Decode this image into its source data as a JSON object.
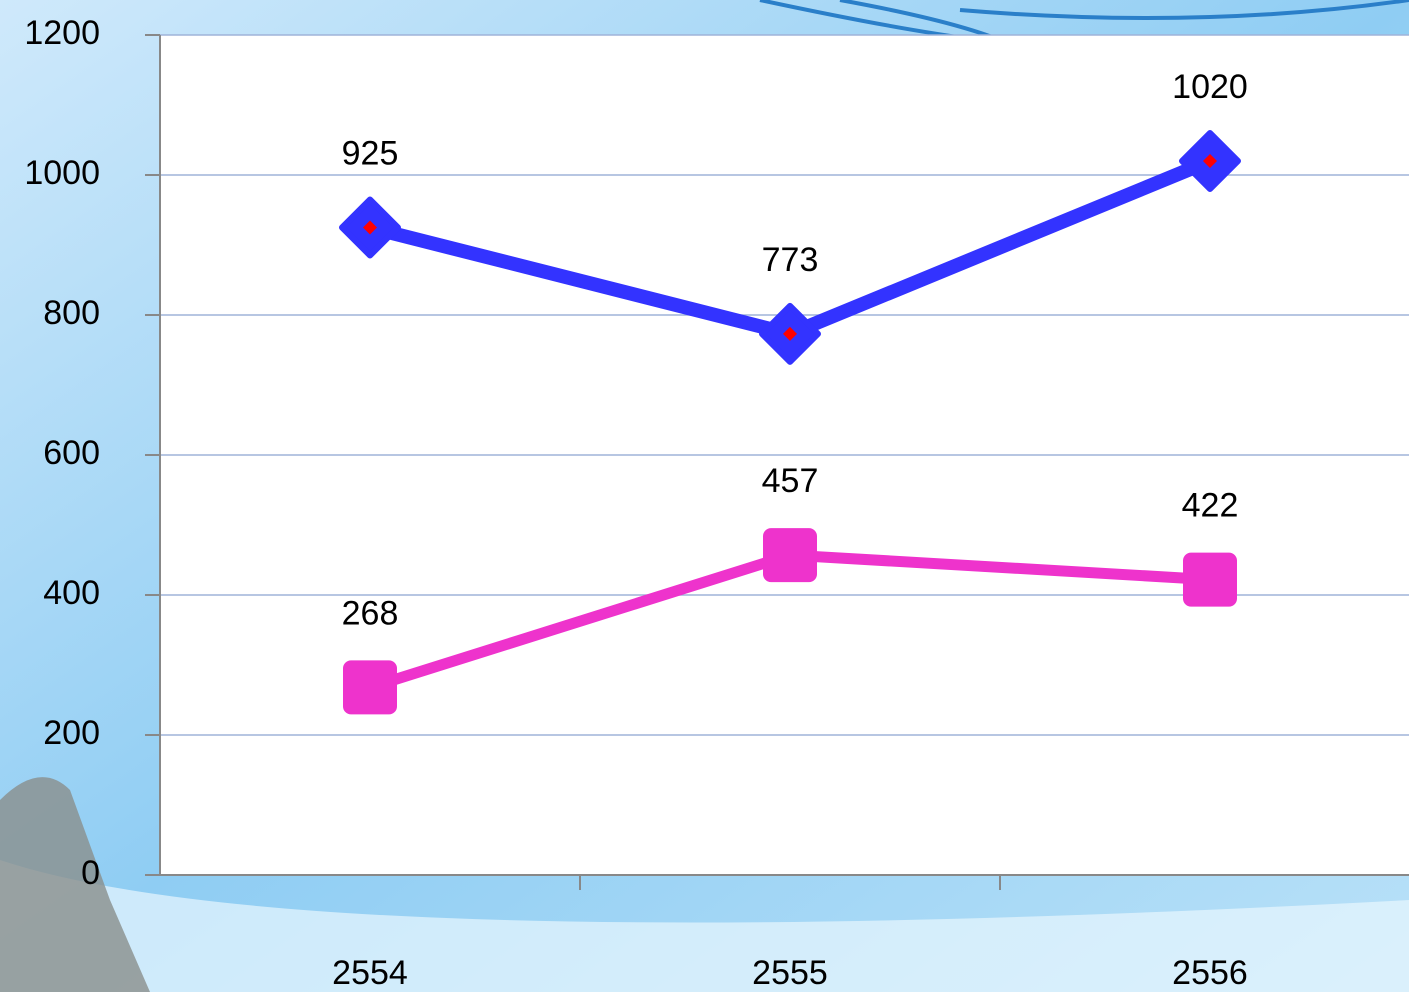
{
  "chart_data": {
    "type": "line",
    "categories": [
      "2554",
      "2555",
      "2556"
    ],
    "series": [
      {
        "color": "#3333ff",
        "marker": "diamond",
        "values": [
          925,
          773,
          1020
        ]
      },
      {
        "color": "#ee33cc",
        "marker": "square",
        "values": [
          268,
          457,
          422
        ]
      }
    ],
    "ylim": [
      0,
      1200
    ],
    "yticks": [
      0,
      200,
      400,
      600,
      800,
      1000,
      1200
    ],
    "grid": true
  }
}
